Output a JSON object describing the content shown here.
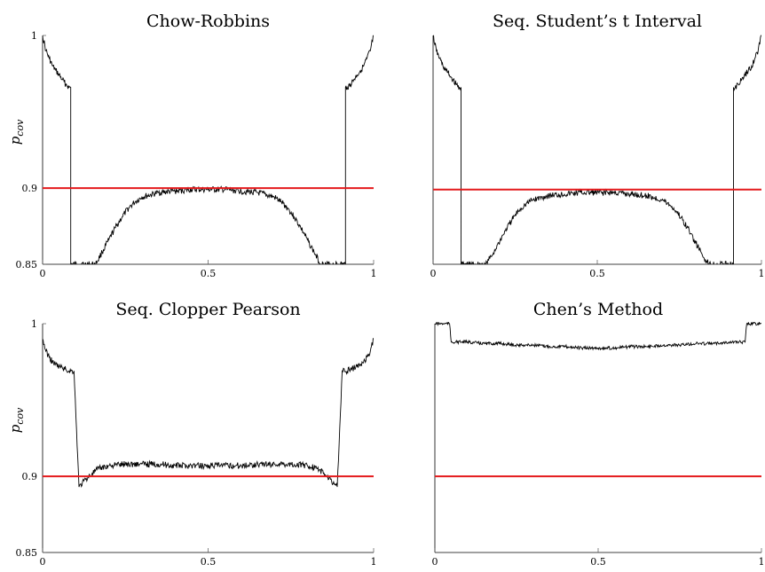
{
  "figure": {
    "y_axis_label": "p",
    "y_axis_label_subscript": "cov"
  },
  "chart_data": [
    {
      "type": "line",
      "title": "Chow-Robbins",
      "xlabel": "",
      "ylabel": "p_cov",
      "xlim": [
        0,
        1
      ],
      "ylim": [
        0.85,
        1
      ],
      "x_ticks": [
        "0",
        "0.5",
        "1"
      ],
      "y_ticks": [
        "0.85",
        "0.9",
        "1"
      ],
      "grid": false,
      "reference_line": {
        "y": 0.9,
        "color": "#e41a1c"
      },
      "series": [
        {
          "color": "#000000",
          "values": [
            [
              0.0,
              1.0
            ],
            [
              0.01,
              0.99
            ],
            [
              0.02,
              0.985
            ],
            [
              0.03,
              0.98
            ],
            [
              0.04,
              0.977
            ],
            [
              0.05,
              0.974
            ],
            [
              0.06,
              0.971
            ],
            [
              0.07,
              0.968
            ],
            [
              0.08,
              0.966
            ],
            [
              0.085,
              0.966
            ],
            [
              0.085,
              0.85
            ],
            [
              0.16,
              0.85
            ],
            [
              0.18,
              0.858
            ],
            [
              0.2,
              0.866
            ],
            [
              0.22,
              0.874
            ],
            [
              0.24,
              0.881
            ],
            [
              0.26,
              0.887
            ],
            [
              0.28,
              0.891
            ],
            [
              0.3,
              0.894
            ],
            [
              0.35,
              0.897
            ],
            [
              0.4,
              0.898
            ],
            [
              0.45,
              0.899
            ],
            [
              0.5,
              0.899
            ],
            [
              0.55,
              0.899
            ],
            [
              0.6,
              0.898
            ],
            [
              0.65,
              0.897
            ],
            [
              0.7,
              0.894
            ],
            [
              0.72,
              0.891
            ],
            [
              0.74,
              0.887
            ],
            [
              0.76,
              0.881
            ],
            [
              0.78,
              0.874
            ],
            [
              0.8,
              0.866
            ],
            [
              0.82,
              0.858
            ],
            [
              0.84,
              0.85
            ],
            [
              0.915,
              0.85
            ],
            [
              0.915,
              0.966
            ],
            [
              0.92,
              0.966
            ],
            [
              0.93,
              0.968
            ],
            [
              0.94,
              0.971
            ],
            [
              0.95,
              0.974
            ],
            [
              0.96,
              0.977
            ],
            [
              0.97,
              0.98
            ],
            [
              0.98,
              0.985
            ],
            [
              0.99,
              0.99
            ],
            [
              1.0,
              1.0
            ]
          ]
        }
      ]
    },
    {
      "type": "line",
      "title": "Seq. Student’s t Interval",
      "xlabel": "",
      "ylabel": "",
      "xlim": [
        0,
        1
      ],
      "ylim": [
        0.85,
        1
      ],
      "x_ticks": [
        "0",
        "0.5",
        "1"
      ],
      "y_ticks": [],
      "grid": false,
      "reference_line": {
        "y": 0.899,
        "color": "#e41a1c"
      },
      "series": [
        {
          "color": "#000000",
          "values": [
            [
              0.0,
              1.0
            ],
            [
              0.01,
              0.99
            ],
            [
              0.02,
              0.985
            ],
            [
              0.03,
              0.98
            ],
            [
              0.04,
              0.977
            ],
            [
              0.05,
              0.974
            ],
            [
              0.06,
              0.971
            ],
            [
              0.07,
              0.968
            ],
            [
              0.08,
              0.966
            ],
            [
              0.085,
              0.966
            ],
            [
              0.085,
              0.85
            ],
            [
              0.16,
              0.85
            ],
            [
              0.18,
              0.856
            ],
            [
              0.2,
              0.864
            ],
            [
              0.22,
              0.872
            ],
            [
              0.24,
              0.879
            ],
            [
              0.26,
              0.885
            ],
            [
              0.28,
              0.889
            ],
            [
              0.3,
              0.892
            ],
            [
              0.35,
              0.895
            ],
            [
              0.4,
              0.896
            ],
            [
              0.45,
              0.897
            ],
            [
              0.5,
              0.897
            ],
            [
              0.55,
              0.897
            ],
            [
              0.6,
              0.896
            ],
            [
              0.65,
              0.895
            ],
            [
              0.7,
              0.892
            ],
            [
              0.72,
              0.889
            ],
            [
              0.74,
              0.885
            ],
            [
              0.76,
              0.879
            ],
            [
              0.78,
              0.872
            ],
            [
              0.8,
              0.864
            ],
            [
              0.82,
              0.856
            ],
            [
              0.84,
              0.85
            ],
            [
              0.915,
              0.85
            ],
            [
              0.915,
              0.966
            ],
            [
              0.92,
              0.966
            ],
            [
              0.93,
              0.968
            ],
            [
              0.94,
              0.971
            ],
            [
              0.95,
              0.974
            ],
            [
              0.96,
              0.977
            ],
            [
              0.97,
              0.98
            ],
            [
              0.98,
              0.985
            ],
            [
              0.99,
              0.99
            ],
            [
              1.0,
              1.0
            ]
          ]
        }
      ]
    },
    {
      "type": "line",
      "title": "Seq. Clopper Pearson",
      "xlabel": "",
      "ylabel": "p_cov",
      "xlim": [
        0,
        1
      ],
      "ylim": [
        0.85,
        1
      ],
      "x_ticks": [
        "0",
        "0.5",
        "1"
      ],
      "y_ticks": [
        "0.85",
        "0.9",
        "1"
      ],
      "grid": false,
      "reference_line": {
        "y": 0.9,
        "color": "#e41a1c"
      },
      "series": [
        {
          "color": "#000000",
          "values": [
            [
              0.0,
              0.99
            ],
            [
              0.01,
              0.982
            ],
            [
              0.02,
              0.978
            ],
            [
              0.03,
              0.975
            ],
            [
              0.04,
              0.973
            ],
            [
              0.05,
              0.972
            ],
            [
              0.06,
              0.971
            ],
            [
              0.07,
              0.97
            ],
            [
              0.08,
              0.969
            ],
            [
              0.095,
              0.969
            ],
            [
              0.11,
              0.893
            ],
            [
              0.13,
              0.898
            ],
            [
              0.15,
              0.902
            ],
            [
              0.17,
              0.905
            ],
            [
              0.2,
              0.907
            ],
            [
              0.25,
              0.908
            ],
            [
              0.3,
              0.908
            ],
            [
              0.35,
              0.908
            ],
            [
              0.4,
              0.907
            ],
            [
              0.45,
              0.907
            ],
            [
              0.5,
              0.907
            ],
            [
              0.55,
              0.907
            ],
            [
              0.6,
              0.907
            ],
            [
              0.65,
              0.908
            ],
            [
              0.7,
              0.908
            ],
            [
              0.75,
              0.908
            ],
            [
              0.8,
              0.907
            ],
            [
              0.83,
              0.905
            ],
            [
              0.85,
              0.902
            ],
            [
              0.87,
              0.898
            ],
            [
              0.89,
              0.893
            ],
            [
              0.905,
              0.969
            ],
            [
              0.92,
              0.969
            ],
            [
              0.93,
              0.97
            ],
            [
              0.94,
              0.971
            ],
            [
              0.95,
              0.972
            ],
            [
              0.96,
              0.973
            ],
            [
              0.97,
              0.975
            ],
            [
              0.98,
              0.978
            ],
            [
              0.99,
              0.982
            ],
            [
              1.0,
              0.99
            ]
          ]
        }
      ]
    },
    {
      "type": "line",
      "title": "Chen’s Method",
      "xlabel": "",
      "ylabel": "",
      "xlim": [
        0,
        1
      ],
      "ylim": [
        0.85,
        1
      ],
      "x_ticks": [
        "0",
        "0.5",
        "1"
      ],
      "y_ticks": [],
      "grid": false,
      "reference_line": {
        "y": 0.9,
        "color": "#e41a1c"
      },
      "series": [
        {
          "color": "#000000",
          "values": [
            [
              0.0,
              1.0
            ],
            [
              0.045,
              1.0
            ],
            [
              0.05,
              0.988
            ],
            [
              0.1,
              0.988
            ],
            [
              0.15,
              0.987
            ],
            [
              0.2,
              0.987
            ],
            [
              0.25,
              0.986
            ],
            [
              0.3,
              0.986
            ],
            [
              0.35,
              0.985
            ],
            [
              0.4,
              0.985
            ],
            [
              0.45,
              0.984
            ],
            [
              0.5,
              0.984
            ],
            [
              0.55,
              0.984
            ],
            [
              0.6,
              0.985
            ],
            [
              0.65,
              0.985
            ],
            [
              0.7,
              0.986
            ],
            [
              0.75,
              0.986
            ],
            [
              0.8,
              0.987
            ],
            [
              0.85,
              0.987
            ],
            [
              0.9,
              0.988
            ],
            [
              0.95,
              0.988
            ],
            [
              0.955,
              1.0
            ],
            [
              1.0,
              1.0
            ]
          ]
        }
      ]
    }
  ]
}
